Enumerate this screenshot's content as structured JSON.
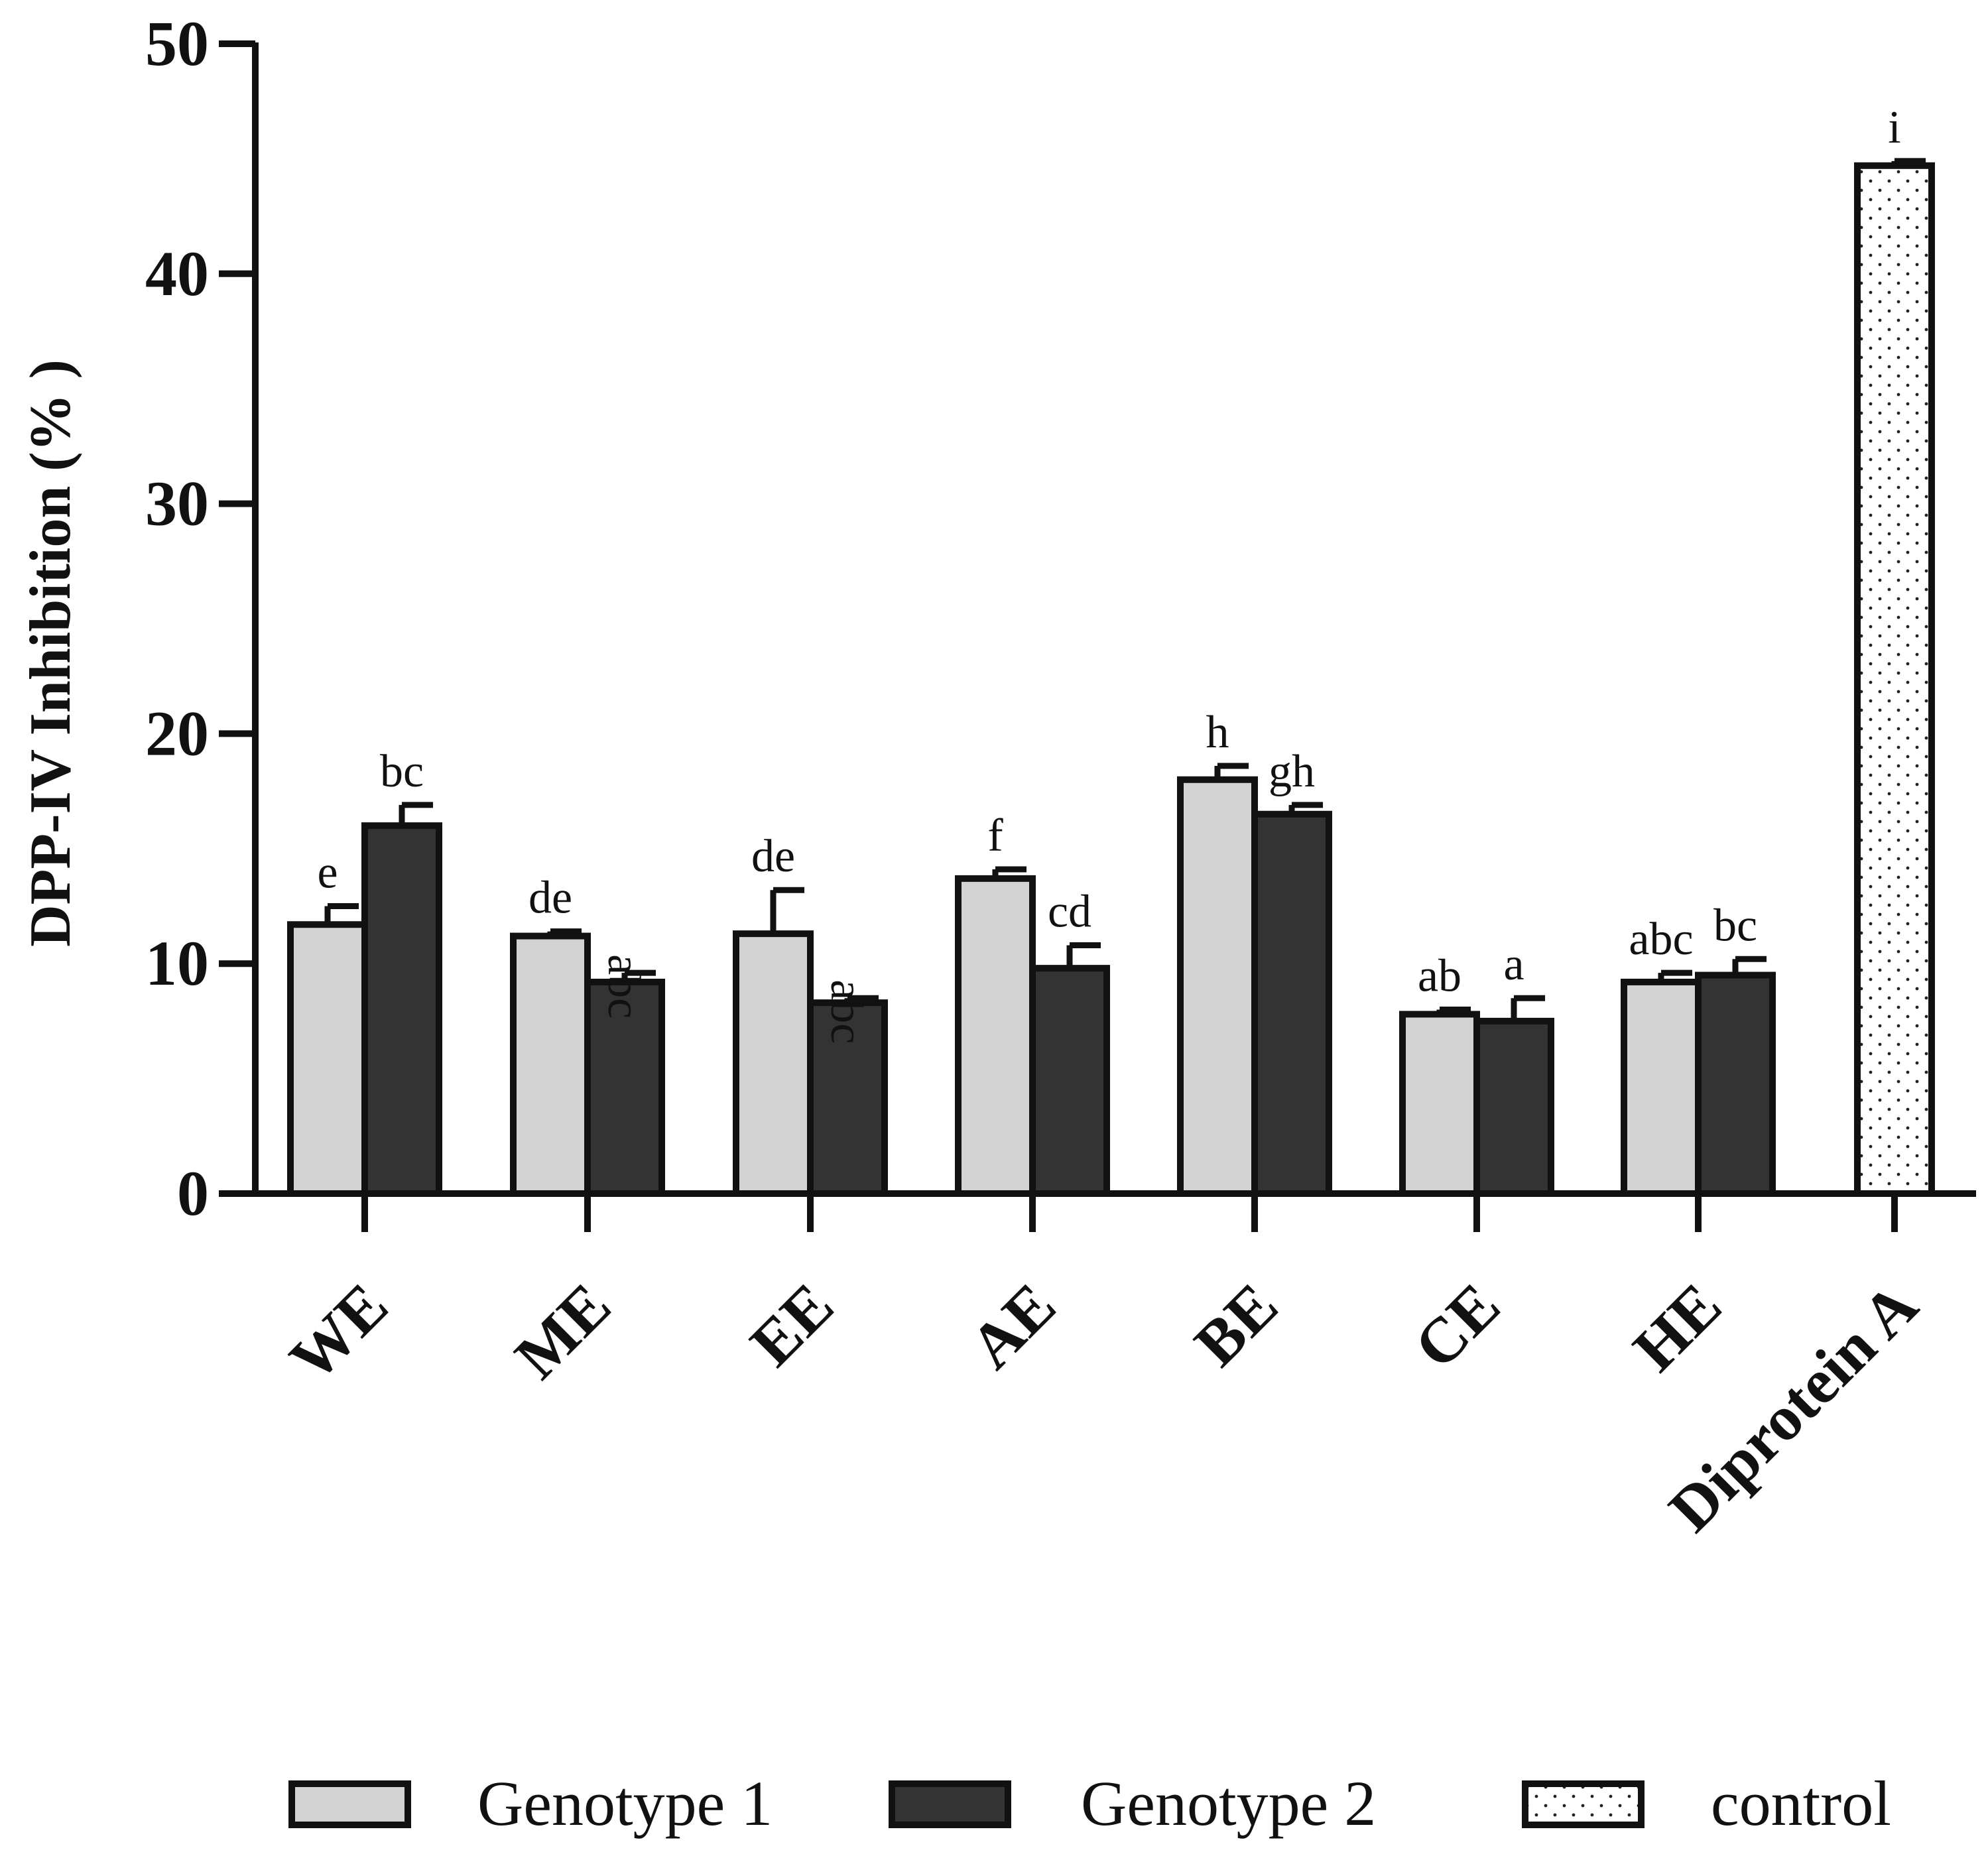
{
  "chart_data": {
    "type": "bar",
    "title": "",
    "xlabel": "",
    "ylabel": "DPP-IV Inhibition (% )",
    "ylim": [
      0,
      50
    ],
    "yticks": [
      0,
      10,
      20,
      30,
      40,
      50
    ],
    "ytick_labels": [
      "0",
      "10",
      "20",
      "30",
      "40",
      "50"
    ],
    "grid": false,
    "legend_position": "bottom",
    "categories": [
      "WE",
      "ME",
      "EE",
      "AE",
      "BE",
      "CE",
      "HE",
      "Diprotein A"
    ],
    "series": [
      {
        "name": "Genotype 1",
        "color": "#d3d3d3",
        "pattern": "solid",
        "values": [
          11.7,
          11.2,
          11.3,
          13.7,
          18.0,
          7.8,
          9.2,
          null
        ],
        "errors": [
          0.8,
          0.2,
          1.9,
          0.4,
          0.6,
          0.2,
          0.4,
          null
        ],
        "letters": [
          "e",
          "de",
          "de",
          "f",
          "h",
          "ab",
          "abc",
          null
        ]
      },
      {
        "name": "Genotype 2",
        "color": "#333333",
        "pattern": "solid",
        "values": [
          16.0,
          9.2,
          8.3,
          9.8,
          16.5,
          7.5,
          9.5,
          null
        ],
        "errors": [
          0.9,
          0.4,
          0.2,
          1.0,
          0.4,
          1.0,
          0.7,
          null
        ],
        "letters": [
          "bc",
          "abc",
          "abc",
          "cd",
          "gh",
          "a",
          "bc",
          null
        ]
      },
      {
        "name": "control",
        "color": "#ffffff",
        "pattern": "dotted",
        "values": [
          null,
          null,
          null,
          null,
          null,
          null,
          null,
          44.7
        ],
        "errors": [
          null,
          null,
          null,
          null,
          null,
          null,
          null,
          0.2
        ],
        "letters": [
          null,
          null,
          null,
          null,
          null,
          null,
          null,
          "i"
        ]
      }
    ]
  }
}
